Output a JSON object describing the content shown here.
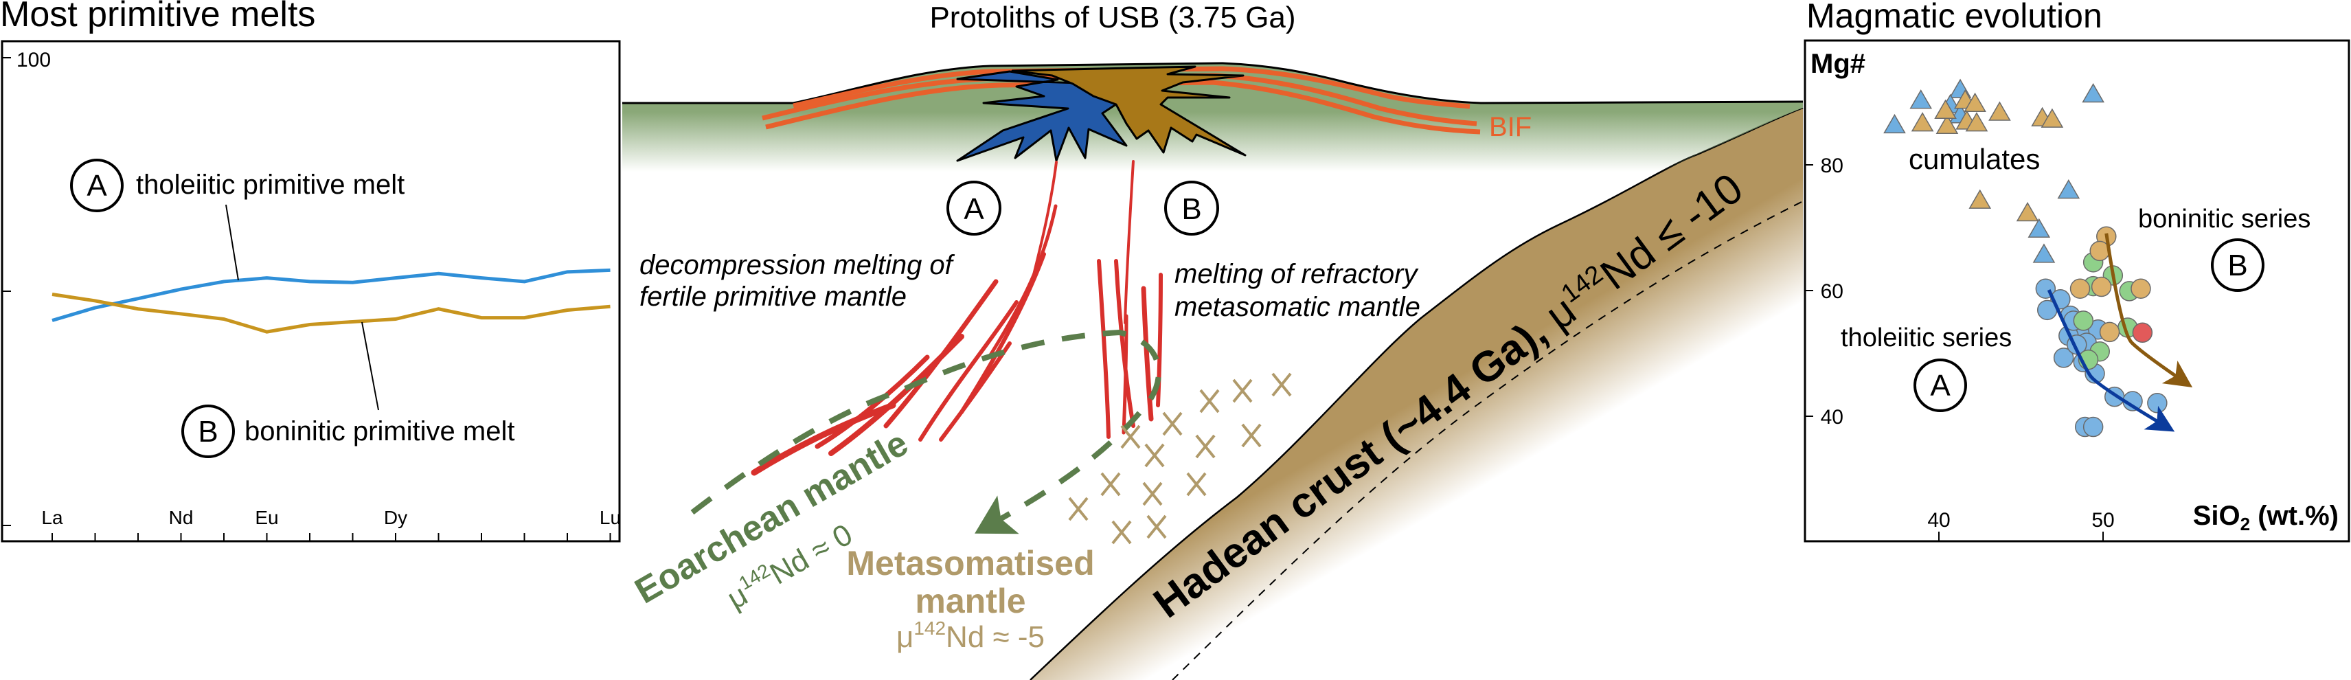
{
  "left_panel": {
    "title": "Most primitive melts",
    "y_tick_label": "100",
    "label_a": "A",
    "text_a": "tholeiitic primitive melt",
    "label_b": "B",
    "text_b": "boninitic primitive melt"
  },
  "center_panel": {
    "title": "Protoliths of USB (3.75 Ga)",
    "bif": "BIF",
    "label_a": "A",
    "label_b": "B",
    "text_a_line1": "decompression melting of",
    "text_a_line2": "fertile primitive mantle",
    "text_b_line1": "melting of refractory",
    "text_b_line2": "metasomatic mantle",
    "eoarchean": {
      "name": "Eoarchean mantle",
      "mu": "μ",
      "sup": "142",
      "rest": "Nd ≈ 0"
    },
    "metasomatised": {
      "line1": "Metasomatised",
      "line2": "mantle",
      "mu": "μ",
      "sup": "142",
      "rest": "Nd ≈ -5"
    },
    "hadean": {
      "name": "Hadean crust (~4.4 Ga), ",
      "mu": "μ",
      "sup": "142",
      "rest": "Nd ≤ -10"
    },
    "colors": {
      "green_layer": "#8aa878",
      "crust": "#b3955f",
      "tholeiitic_magma": "#2259a8",
      "boninitic_magma": "#a87818",
      "melt": "#d8302c",
      "bif": "#e8602c",
      "eoarchean": "#5b7d4b",
      "metasomatised": "#b09a6a"
    }
  },
  "right_panel": {
    "title": "Magmatic evolution",
    "ylabel": "Mg#",
    "xlabel_main": "SiO",
    "xlabel_sub": "2",
    "xlabel_unit": " (wt.%)",
    "cumulates": "cumulates",
    "boninitic_series": "boninitic series",
    "tholeiitic_series": "tholeiitic series",
    "label_a": "A",
    "label_b": "B"
  },
  "chart_data": [
    {
      "type": "line",
      "title": "Most primitive melts",
      "categories": [
        "La",
        "",
        "",
        "Nd",
        "",
        "Eu",
        "",
        "",
        "Dy",
        "",
        "",
        "",
        "",
        "Lu"
      ],
      "y_scale": "log",
      "ylim": [
        1,
        100
      ],
      "y_tick_labels": [
        "100"
      ],
      "grid": false,
      "series": [
        {
          "name": "tholeiitic primitive melt",
          "color": "#2f8fd8",
          "values": [
            7.5,
            8.5,
            9.3,
            10.2,
            11.0,
            11.4,
            11.0,
            10.9,
            11.4,
            11.9,
            11.4,
            11.0,
            12.1,
            12.3
          ]
        },
        {
          "name": "boninitic primitive melt",
          "color": "#c8951e",
          "values": [
            9.7,
            9.1,
            8.4,
            8.0,
            7.6,
            6.7,
            7.2,
            7.4,
            7.6,
            8.4,
            7.7,
            7.7,
            8.3,
            8.6
          ]
        }
      ]
    },
    {
      "type": "scatter",
      "title": "Magmatic evolution",
      "xlabel": "SiO2 (wt.%)",
      "ylabel": "Mg#",
      "x_ticks": [
        40,
        50
      ],
      "y_ticks": [
        40,
        60,
        80
      ],
      "grid": false,
      "series": [
        {
          "marker": "triangle",
          "color": "#6eaee0",
          "points": [
            [
              37.3,
              86.3
            ],
            [
              38.9,
              90.2
            ],
            [
              41.3,
              91.9
            ],
            [
              40.7,
              89.5
            ],
            [
              41.3,
              87.9
            ],
            [
              49.4,
              91.2
            ],
            [
              47.9,
              75.9
            ],
            [
              46.1,
              69.7
            ],
            [
              46.4,
              65.7
            ]
          ]
        },
        {
          "marker": "triangle",
          "color": "#d7ac62",
          "points": [
            [
              39.0,
              86.6
            ],
            [
              40.5,
              86.2
            ],
            [
              41.6,
              90.2
            ],
            [
              42.2,
              89.7
            ],
            [
              41.7,
              86.9
            ],
            [
              42.3,
              86.6
            ],
            [
              43.7,
              88.3
            ],
            [
              46.3,
              87.4
            ],
            [
              46.9,
              87.2
            ],
            [
              42.5,
              74.3
            ],
            [
              45.4,
              72.3
            ],
            [
              40.4,
              88.6
            ]
          ]
        },
        {
          "marker": "circle",
          "color": "#7ab3e2",
          "points": [
            [
              46.5,
              60.3
            ],
            [
              47.4,
              58.6
            ],
            [
              46.6,
              56.9
            ],
            [
              48.0,
              56.0
            ],
            [
              48.6,
              53.8
            ],
            [
              47.9,
              52.8
            ],
            [
              49.7,
              53.8
            ],
            [
              49.0,
              51.7
            ],
            [
              47.6,
              49.3
            ],
            [
              48.8,
              48.6
            ],
            [
              49.5,
              46.8
            ],
            [
              50.7,
              43.1
            ],
            [
              51.8,
              42.4
            ],
            [
              53.3,
              42.1
            ],
            [
              48.9,
              38.3
            ],
            [
              49.4,
              38.3
            ],
            [
              48.4,
              51.4
            ],
            [
              48.2,
              55.2
            ]
          ]
        },
        {
          "marker": "circle",
          "color": "#8fd08a",
          "points": [
            [
              49.4,
              64.5
            ],
            [
              50.6,
              62.4
            ],
            [
              49.4,
              60.7
            ],
            [
              51.6,
              59.9
            ],
            [
              48.8,
              55.2
            ],
            [
              51.5,
              54.1
            ],
            [
              49.8,
              50.3
            ],
            [
              49.1,
              49.0
            ]
          ]
        },
        {
          "marker": "circle",
          "color": "#dcb06a",
          "points": [
            [
              50.2,
              68.6
            ],
            [
              49.8,
              66.3
            ],
            [
              48.6,
              60.3
            ],
            [
              49.9,
              60.6
            ],
            [
              52.3,
              60.3
            ],
            [
              50.4,
              53.4
            ]
          ]
        },
        {
          "marker": "circle",
          "color": "#e25a5a",
          "points": [
            [
              52.4,
              53.3
            ]
          ]
        }
      ],
      "trends": [
        {
          "name": "tholeiitic series",
          "color": "#0b3b9c",
          "points": [
            [
              46.7,
              60.1
            ],
            [
              48.8,
              47.9
            ],
            [
              49.7,
              44.8
            ],
            [
              54.0,
              38.1
            ]
          ]
        },
        {
          "name": "boninitic series",
          "color": "#8a5a10",
          "points": [
            [
              50.2,
              69.1
            ],
            [
              51.1,
              53.4
            ],
            [
              52.4,
              50.0
            ],
            [
              55.1,
              45.2
            ]
          ]
        }
      ]
    }
  ]
}
